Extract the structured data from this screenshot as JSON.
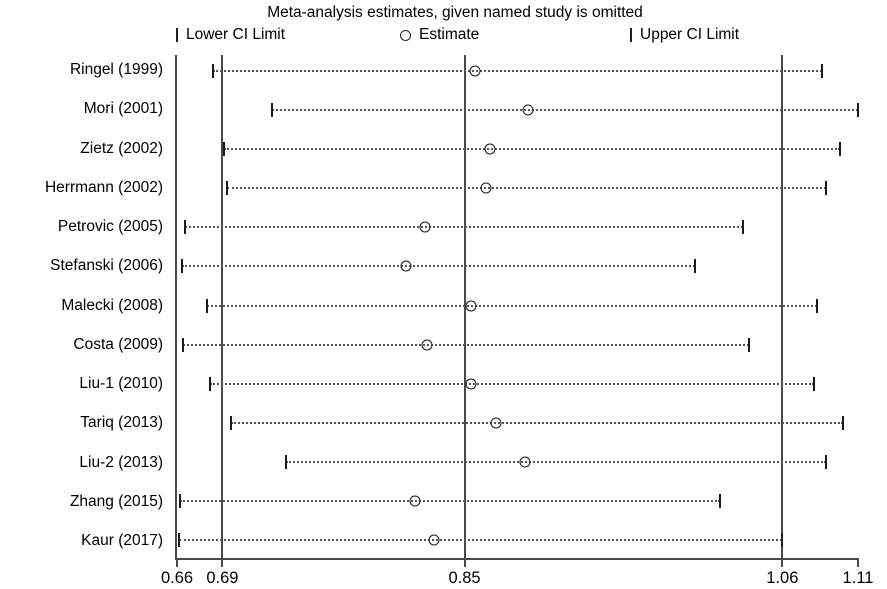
{
  "title": "Meta-analysis estimates, given named study is omitted",
  "legend": {
    "lower_label": "Lower CI Limit",
    "estimate_label": "Estimate",
    "upper_label": "Upper CI Limit"
  },
  "colors": {
    "background": "#ffffff",
    "text": "#000000",
    "axis_line": "#4a4a4a",
    "dotted_line": "#555555",
    "marker_stroke": "#1a1a1a"
  },
  "chart_data": {
    "type": "scatter",
    "subtype": "leave-one-out-sensitivity-forest",
    "title": "Meta-analysis estimates, given named study is omitted",
    "xlabel": "",
    "ylabel": "",
    "xlim": [
      0.66,
      1.11
    ],
    "x_ticks": [
      0.66,
      0.69,
      0.85,
      1.06,
      1.11
    ],
    "reference_lines": [
      0.69,
      0.85,
      1.06
    ],
    "grid": "per-row dotted connector between CI limits",
    "legend_position": "top",
    "series_names": [
      "Lower CI Limit",
      "Estimate",
      "Upper CI Limit"
    ],
    "studies": [
      {
        "label": "Ringel (1999)",
        "lower": 0.684,
        "estimate": 0.857,
        "upper": 1.086
      },
      {
        "label": "Mori (2001)",
        "lower": 0.723,
        "estimate": 0.892,
        "upper": 1.11
      },
      {
        "label": "Zietz (2002)",
        "lower": 0.691,
        "estimate": 0.867,
        "upper": 1.098
      },
      {
        "label": "Herrmann (2002)",
        "lower": 0.693,
        "estimate": 0.864,
        "upper": 1.089
      },
      {
        "label": "Petrovic (2005)",
        "lower": 0.665,
        "estimate": 0.824,
        "upper": 1.034
      },
      {
        "label": "Stefanski (2006)",
        "lower": 0.663,
        "estimate": 0.811,
        "upper": 1.002
      },
      {
        "label": "Malecki (2008)",
        "lower": 0.68,
        "estimate": 0.854,
        "upper": 1.083
      },
      {
        "label": "Costa (2009)",
        "lower": 0.664,
        "estimate": 0.825,
        "upper": 1.038
      },
      {
        "label": "Liu-1 (2010)",
        "lower": 0.682,
        "estimate": 0.854,
        "upper": 1.081
      },
      {
        "label": "Tariq (2013)",
        "lower": 0.696,
        "estimate": 0.871,
        "upper": 1.1
      },
      {
        "label": "Liu-2 (2013)",
        "lower": 0.732,
        "estimate": 0.89,
        "upper": 1.089
      },
      {
        "label": "Zhang (2015)",
        "lower": 0.662,
        "estimate": 0.817,
        "upper": 1.019
      },
      {
        "label": "Kaur (2017)",
        "lower": 0.661,
        "estimate": 0.83,
        "upper": 1.06
      }
    ]
  }
}
